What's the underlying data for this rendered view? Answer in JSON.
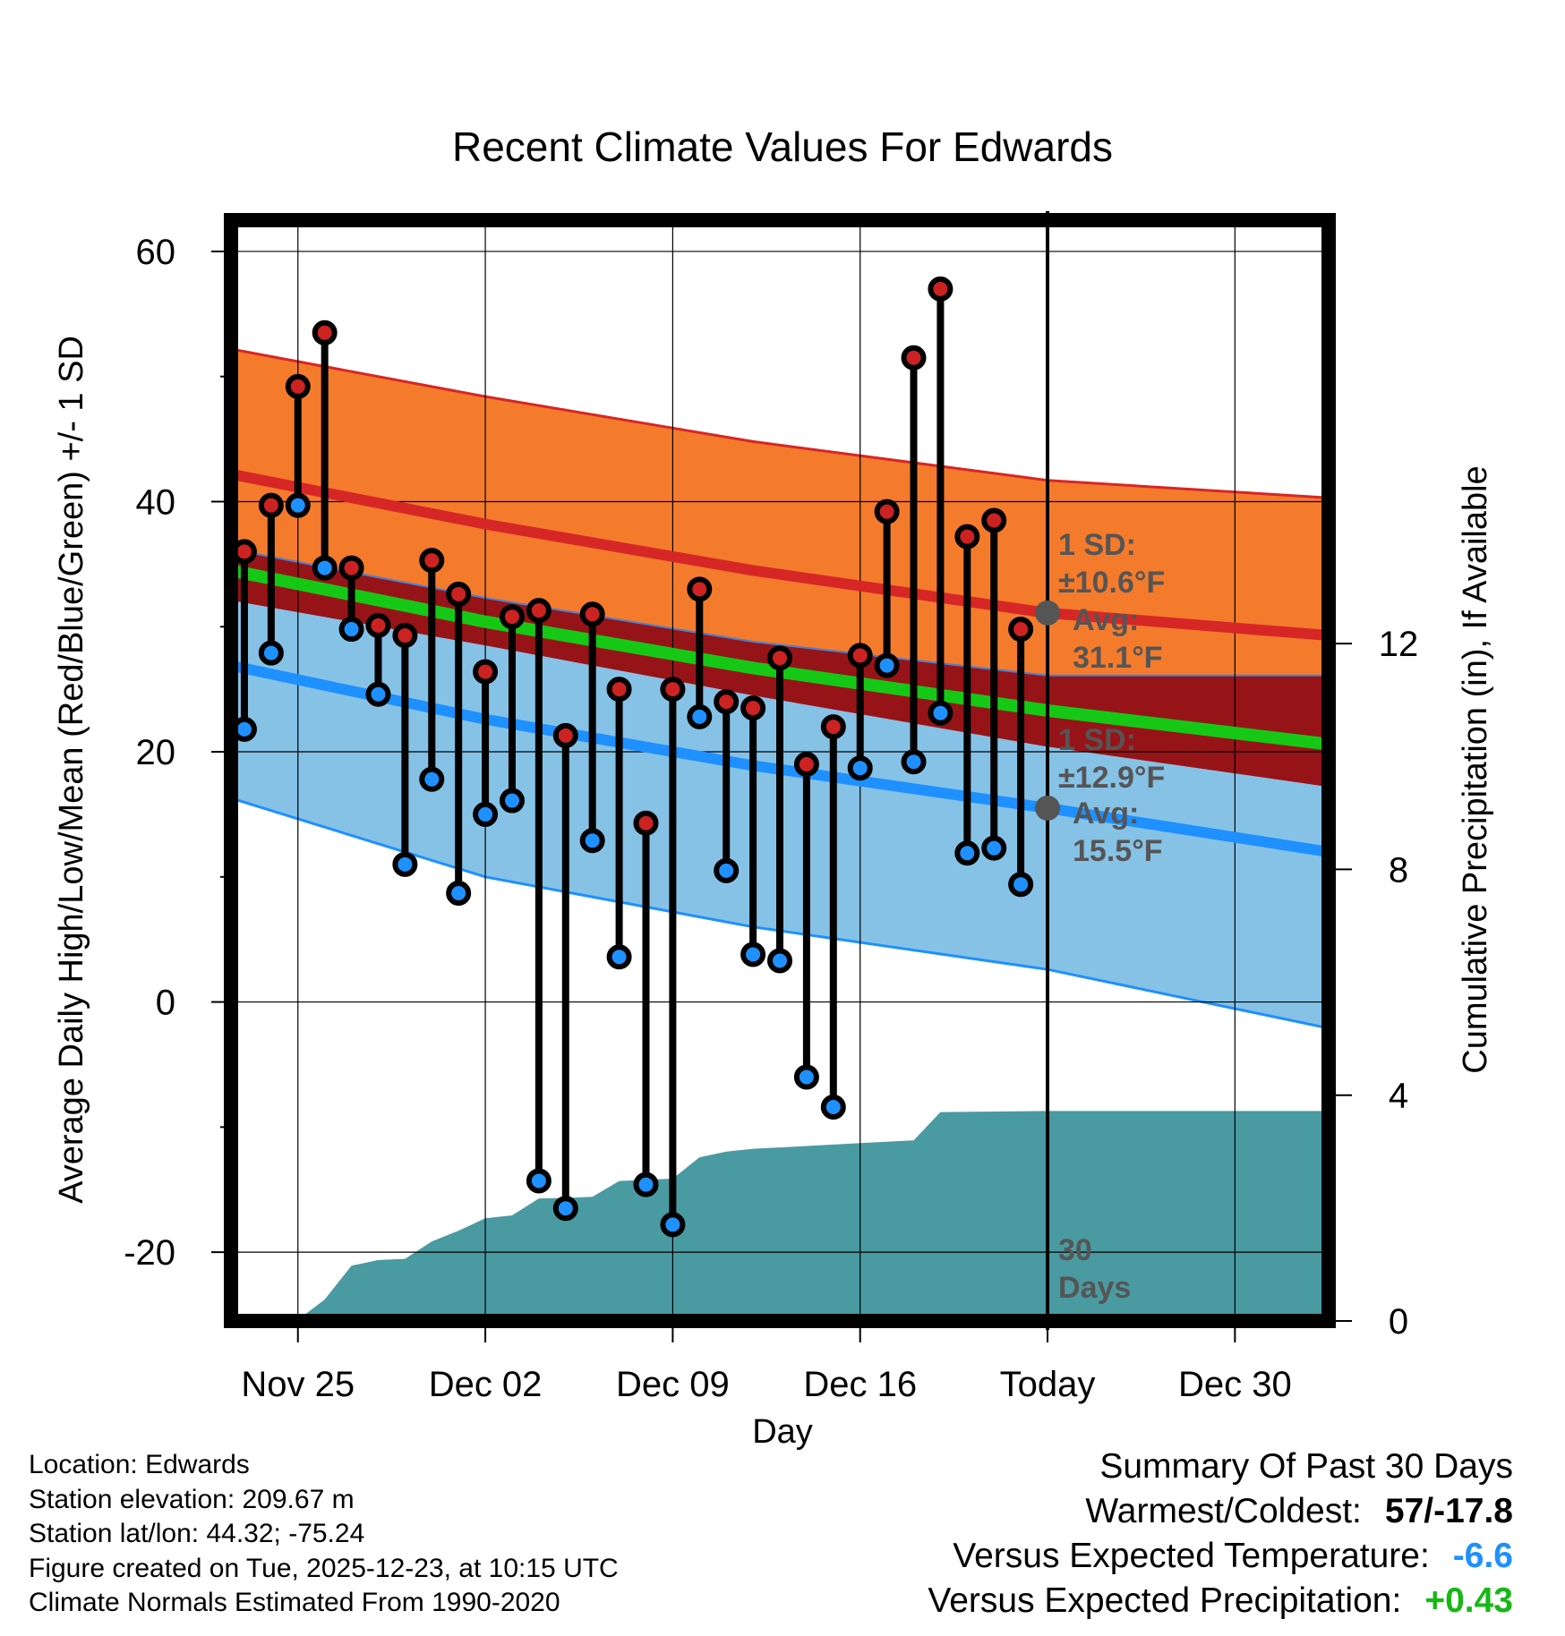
{
  "chart_data": {
    "type": "line",
    "title": "Recent Climate Values For Edwards",
    "xlabel": "Day",
    "ylabel": "Average Daily High/Low/Mean (Red/Blue/Green) +/- 1 SD",
    "ylabel_right": "Cumulative Precipitation (in), If Available",
    "x_tick_labels": [
      "Nov 25",
      "Dec 02",
      "Dec 09",
      "Dec 16",
      "Today",
      "Dec 30"
    ],
    "x_tick_days": [
      3,
      10,
      17,
      24,
      31,
      38
    ],
    "today_day": 31,
    "xlim": [
      0.5,
      41.5
    ],
    "ylim": [
      -25.5,
      62.5
    ],
    "yticks": [
      -20,
      0,
      20,
      40,
      60
    ],
    "y2lim": [
      0,
      19.5
    ],
    "y2ticks": [
      0,
      4,
      8,
      12
    ],
    "days": [
      1,
      2,
      3,
      4,
      5,
      6,
      7,
      8,
      9,
      10,
      11,
      12,
      13,
      14,
      15,
      16,
      17,
      18,
      19,
      20,
      21,
      22,
      23,
      24,
      25,
      26,
      27,
      28,
      29,
      30
    ],
    "daily_high": [
      36,
      39.7,
      49.2,
      53.5,
      34.7,
      30.1,
      29.3,
      35.3,
      32.6,
      26.4,
      30.8,
      31.3,
      21.3,
      31.0,
      25.0,
      14.3,
      25.0,
      33.0,
      24.0,
      23.5,
      27.5,
      19.0,
      22.0,
      27.7,
      39.2,
      51.5,
      57.0,
      37.2,
      38.5,
      29.8
    ],
    "daily_low": [
      21.8,
      27.9,
      39.7,
      34.7,
      29.8,
      24.6,
      11.0,
      17.8,
      8.7,
      15.0,
      16.1,
      -14.3,
      -16.5,
      12.9,
      3.6,
      -14.6,
      -17.8,
      22.8,
      10.5,
      3.8,
      3.3,
      -6.0,
      -8.4,
      18.7,
      26.9,
      19.2,
      23.1,
      11.9,
      12.3,
      9.4
    ],
    "normal_high": {
      "days": [
        0.5,
        10,
        20,
        31,
        41.5
      ],
      "mean": [
        42.2,
        38.2,
        34.5,
        31.1,
        29.3
      ],
      "upper": [
        52.2,
        48.4,
        44.8,
        41.7,
        40.3
      ],
      "lower": [
        36.2,
        32.3,
        28.8,
        26.1,
        26.1
      ]
    },
    "normal_low": {
      "days": [
        0.5,
        10,
        20,
        31,
        41.5
      ],
      "mean": [
        26.9,
        22.6,
        18.9,
        15.5,
        12.0
      ],
      "upper": [
        32.1,
        28.5,
        24.5,
        20.4,
        17.2
      ],
      "lower": [
        16.3,
        10.0,
        6.0,
        2.6,
        -2.1
      ]
    },
    "normal_mean": {
      "days": [
        0.5,
        10,
        20,
        31,
        41.5
      ],
      "mean": [
        34.5,
        30.4,
        26.7,
        23.3,
        20.6
      ]
    },
    "cumulative_precip": {
      "days": [
        0.5,
        3,
        4,
        5,
        6,
        7,
        8,
        9,
        10,
        11,
        12,
        13,
        14,
        15,
        16,
        17,
        18,
        19,
        20,
        22,
        24,
        26,
        27,
        31,
        41.5
      ],
      "values": [
        0,
        0.02,
        0.38,
        0.98,
        1.08,
        1.1,
        1.41,
        1.6,
        1.82,
        1.87,
        2.17,
        2.18,
        2.2,
        2.48,
        2.5,
        2.52,
        2.9,
        3.0,
        3.05,
        3.1,
        3.15,
        3.2,
        3.7,
        3.72,
        3.72
      ]
    },
    "annotations": {
      "high_sd": "1 SD:",
      "high_sd_value": "±10.6°F",
      "high_avg": "Avg:",
      "high_avg_value": "31.1°F",
      "low_sd": "1 SD:",
      "low_sd_value": "±12.9°F",
      "low_avg": "Avg:",
      "low_avg_value": "15.5°F",
      "days_count": "30",
      "days_word": "Days"
    },
    "colors": {
      "high_band": "#f47b2c",
      "high_line": "#d62726",
      "overlap_band": "#961418",
      "low_band": "#86c2e6",
      "low_line": "#1e90ff",
      "mean_line": "#16c816",
      "precip": "#4a9aa1",
      "high_marker": "#cc2222",
      "low_marker": "#1e90ff",
      "annotation": "#555555"
    }
  },
  "info": {
    "location": "Location: Edwards",
    "elevation": "Station elevation: 209.67 m",
    "latlon": "Station lat/lon: 44.32; -75.24",
    "created": "Figure created on Tue, 2025-12-23, at 10:15 UTC",
    "normals": "Climate Normals Estimated From 1990-2020"
  },
  "summary": {
    "title": "Summary Of Past 30 Days",
    "warmest_label": "Warmest/Coldest:",
    "warmest_value": "57/-17.8",
    "temp_label": "Versus Expected Temperature:",
    "temp_value": "-6.6",
    "temp_color": "#1e90ff",
    "precip_label": "Versus Expected Precipitation:",
    "precip_value": "+0.43",
    "precip_color": "#16b816"
  }
}
